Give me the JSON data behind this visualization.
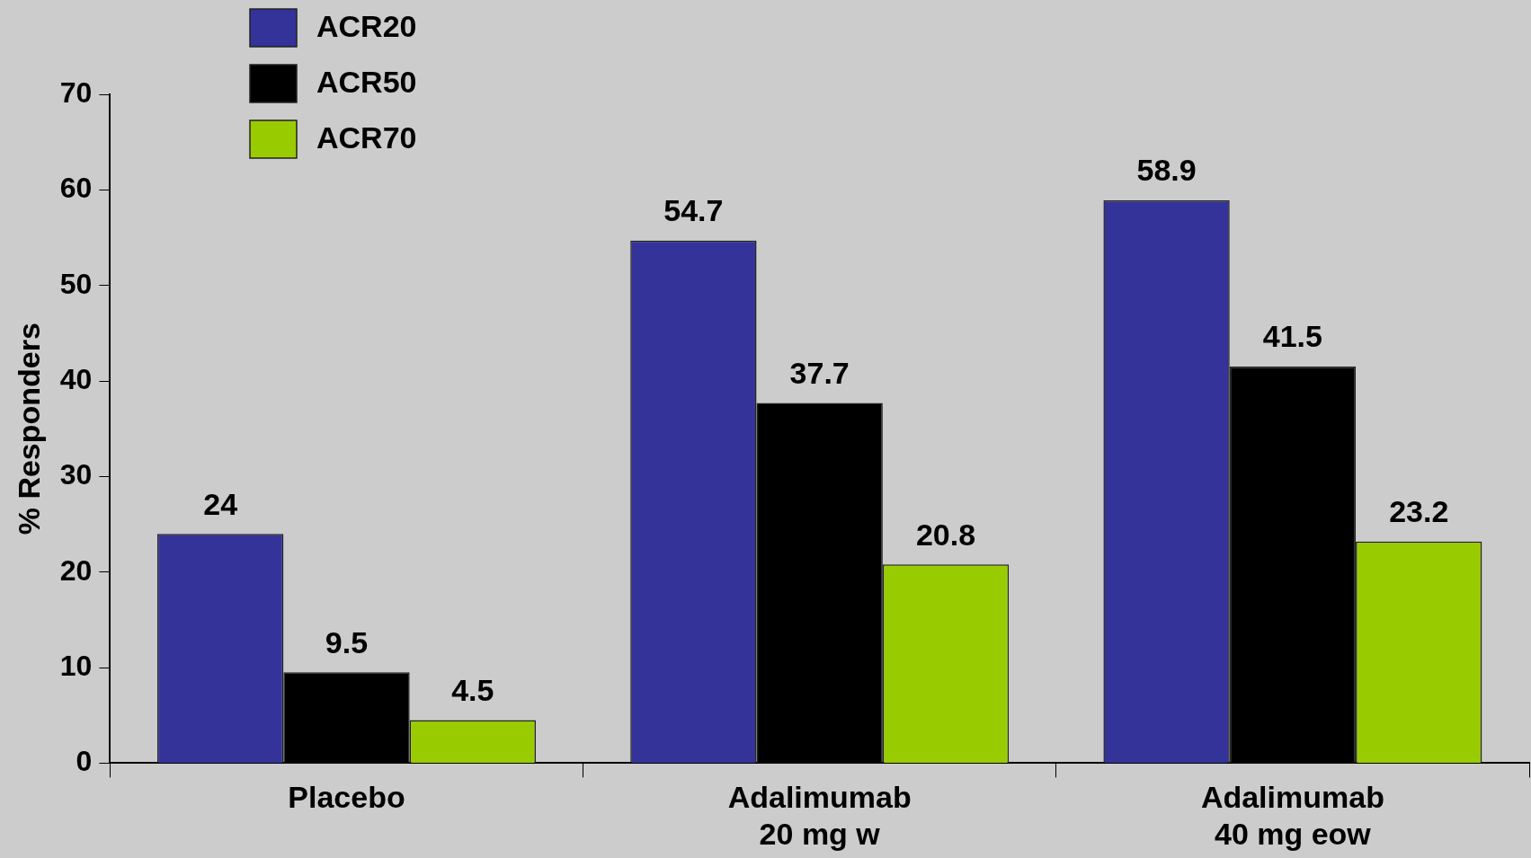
{
  "chart_data": {
    "type": "bar",
    "ylabel": "% Responders",
    "categories": [
      "Placebo",
      "Adalimumab\n20 mg w",
      "Adalimumab\n40 mg eow"
    ],
    "series": [
      {
        "name": "ACR20",
        "color": "#333399",
        "values": [
          24,
          54.7,
          58.9
        ]
      },
      {
        "name": "ACR50",
        "color": "#000000",
        "values": [
          9.5,
          37.7,
          41.5
        ]
      },
      {
        "name": "ACR70",
        "color": "#99cc00",
        "values": [
          4.5,
          20.8,
          23.2
        ]
      }
    ],
    "ylim": [
      0,
      70
    ],
    "yticks": [
      0,
      10,
      20,
      30,
      40,
      50,
      60,
      70
    ],
    "grid": false,
    "legend": "top left",
    "data_labels": true
  }
}
